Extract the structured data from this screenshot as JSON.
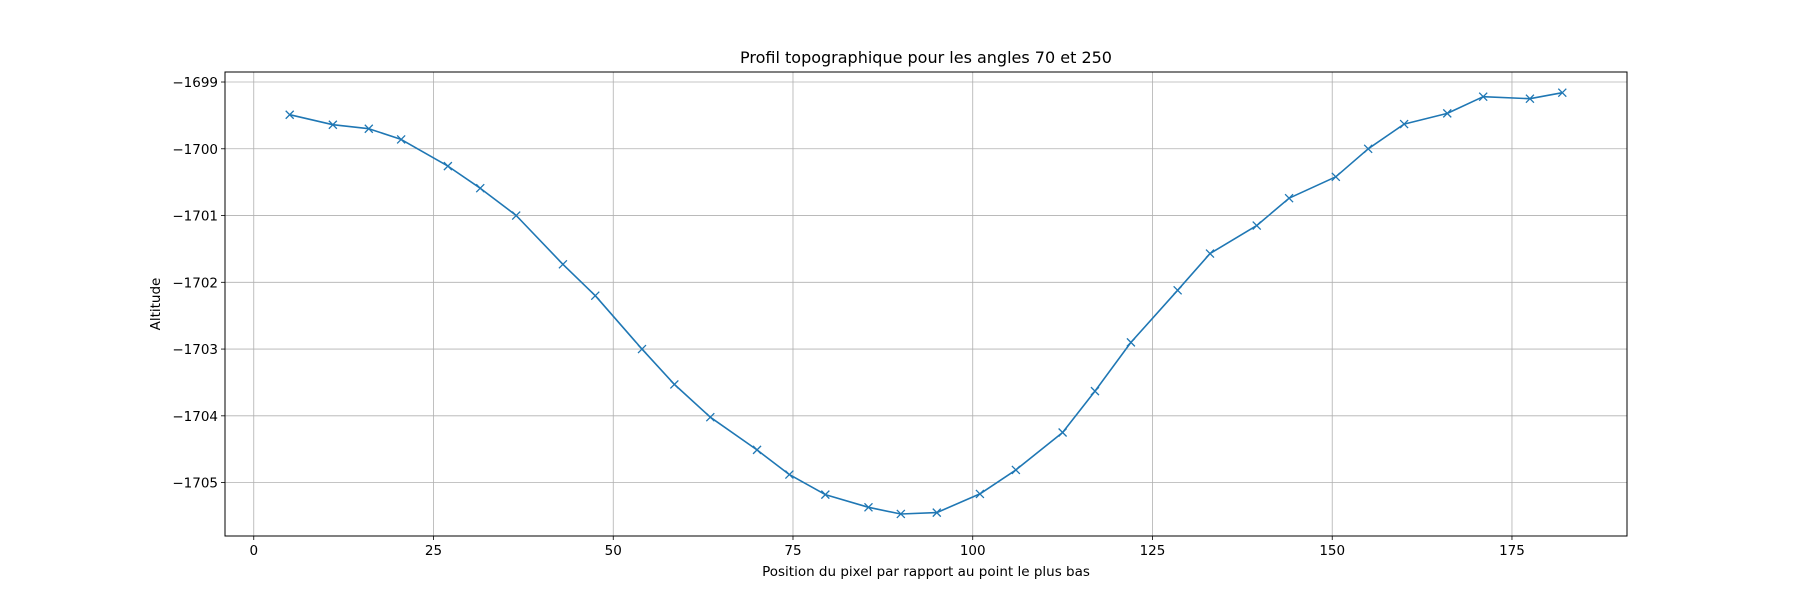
{
  "chart_data": {
    "type": "line",
    "title": "Profil topographique pour les angles 70 et 250",
    "xlabel": "Position du pixel par rapport au point le plus bas",
    "ylabel": "Altitude",
    "xlim": [
      -4,
      191
    ],
    "ylim": [
      -1705.8,
      -1698.85
    ],
    "xticks": [
      0,
      25,
      50,
      75,
      100,
      125,
      150,
      175
    ],
    "xtick_labels": [
      "0",
      "25",
      "50",
      "75",
      "100",
      "125",
      "150",
      "175"
    ],
    "yticks": [
      -1699,
      -1700,
      -1701,
      -1702,
      -1703,
      -1704,
      -1705
    ],
    "ytick_labels": [
      "−1699",
      "−1700",
      "−1701",
      "−1702",
      "−1703",
      "−1704",
      "−1705"
    ],
    "grid": true,
    "marker": "x",
    "color": "#1f77b4",
    "series": [
      {
        "x": [
          5,
          11,
          16,
          20.5,
          27,
          31.5,
          36.5,
          43,
          47.5,
          54,
          58.5,
          63.5,
          70,
          74.5,
          79.5,
          85.5,
          90,
          95,
          101,
          106,
          112.5,
          117,
          122,
          128.5,
          133,
          139.5,
          144,
          150.5,
          155,
          160,
          166,
          171,
          177.5,
          182
        ],
        "y": [
          -1699.49,
          -1699.64,
          -1699.7,
          -1699.86,
          -1700.26,
          -1700.59,
          -1701.0,
          -1701.73,
          -1702.2,
          -1703.0,
          -1703.53,
          -1704.02,
          -1704.51,
          -1704.88,
          -1705.18,
          -1705.37,
          -1705.47,
          -1705.45,
          -1705.17,
          -1704.81,
          -1704.25,
          -1703.63,
          -1702.9,
          -1702.12,
          -1701.57,
          -1701.15,
          -1700.74,
          -1700.42,
          -1700.0,
          -1699.63,
          -1699.47,
          -1699.22,
          -1699.25,
          -1699.16
        ]
      }
    ]
  }
}
